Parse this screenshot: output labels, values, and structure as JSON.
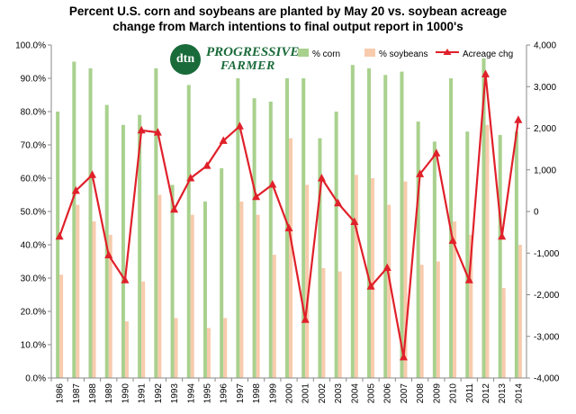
{
  "chart_data": {
    "type": "bar",
    "title": "Percent U.S. corn and soybeans are planted by May 20 vs. soybean acreage change from March intentions to final output report in 1000's",
    "title_lines": [
      "Percent U.S. corn and soybeans are planted by May 20 vs. soybean acreage",
      "change from March intentions to final output report in 1000's"
    ],
    "categories": [
      "1986",
      "1987",
      "1988",
      "1989",
      "1990",
      "1991",
      "1992",
      "1993",
      "1994",
      "1995",
      "1996",
      "1997",
      "1998",
      "1999",
      "2000",
      "2001",
      "2002",
      "2003",
      "2004",
      "2005",
      "2006",
      "2007",
      "2008",
      "2009",
      "2010",
      "2011",
      "2012",
      "2013",
      "2014"
    ],
    "left_axis": {
      "min": 0,
      "max": 100,
      "step": 10,
      "ticks": [
        "0.0%",
        "10.0%",
        "20.0%",
        "30.0%",
        "40.0%",
        "50.0%",
        "60.0%",
        "70.0%",
        "80.0%",
        "90.0%",
        "100.0%"
      ]
    },
    "right_axis": {
      "min": -4000,
      "max": 4000,
      "step": 1000,
      "ticks": [
        "-4,000",
        "-3,000",
        "-2,000",
        "-1,000",
        "0",
        "1,000",
        "2,000",
        "3,000",
        "4,000"
      ]
    },
    "series": [
      {
        "name": "% corn",
        "kind": "bar",
        "axis": "left",
        "color": "#a9d18e",
        "values": [
          80,
          95,
          93,
          82,
          76,
          79,
          93,
          58,
          88,
          53,
          63,
          90,
          84,
          83,
          95,
          90,
          72,
          80,
          94,
          93,
          91,
          92,
          77,
          71,
          90,
          74,
          96,
          73,
          74
        ]
      },
      {
        "name": "% soybeans",
        "kind": "bar",
        "axis": "left",
        "color": "#f8cbad",
        "values": [
          31,
          52,
          47,
          43,
          17,
          29,
          55,
          18,
          49,
          15,
          18,
          53,
          49,
          37,
          72,
          58,
          33,
          32,
          61,
          60,
          52,
          59,
          34,
          35,
          47,
          43,
          76,
          27,
          40
        ]
      },
      {
        "name": "Acreage chg",
        "kind": "line",
        "axis": "right",
        "color": "#e0202a",
        "marker": "triangle",
        "values": [
          -600,
          500,
          880,
          -1050,
          -1650,
          1950,
          1900,
          50,
          800,
          1100,
          1700,
          2050,
          350,
          650,
          -400,
          -2600,
          800,
          200,
          -250,
          -1800,
          -1350,
          -3500,
          900,
          1400,
          -700,
          -1650,
          3300,
          -600,
          2200
        ]
      }
    ],
    "legend_position": "top-right",
    "grid": false
  },
  "logo": {
    "mark": "dtn",
    "line1": "PROGRESSIVE",
    "line2": "FARMER"
  }
}
